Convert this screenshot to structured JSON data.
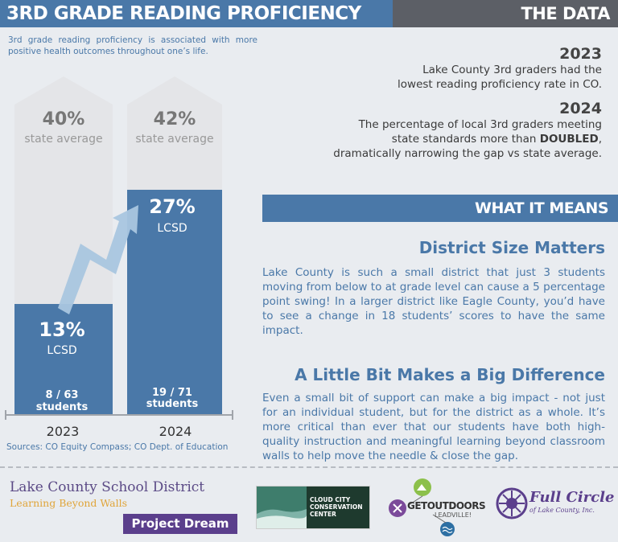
{
  "header": {
    "title": "3RD GRADE READING PROFICIENCY",
    "data_title": "THE DATA"
  },
  "intro": "3rd grade reading proficiency is associated with more positive health outcomes throughout one’s life.",
  "chart_data": {
    "type": "bar",
    "categories": [
      "2023",
      "2024"
    ],
    "series": [
      {
        "name": "LCSD",
        "values": [
          13,
          27
        ]
      },
      {
        "name": "state average",
        "values": [
          40,
          42
        ]
      }
    ],
    "ylim": [
      0,
      45
    ],
    "labels": {
      "state_avg_2023": "40%",
      "state_avg_2024": "42%",
      "state_avg_text": "state average",
      "lcsd_2023": "13%",
      "lcsd_2024": "27%",
      "lcsd_text": "LCSD",
      "count_2023": "8 / 63",
      "count_2024": "19 / 71",
      "students_text": "students"
    },
    "colors": {
      "lcsd": "#4a78a8",
      "state": "#e4e5e8",
      "arrow": "#a9c6df"
    }
  },
  "sources": "Sources: CO Equity Compass; CO Dept. of Education",
  "the_data": {
    "y2023": {
      "year": "2023",
      "line1": "Lake County 3rd graders had the",
      "line2": "lowest reading proficiency rate in CO."
    },
    "y2024": {
      "year": "2024",
      "line1": "The percentage of local 3rd graders meeting",
      "line2_a": "state standards more than ",
      "line2_b": "DOUBLED",
      "line2_c": ",",
      "line3": "dramatically narrowing the gap vs state average."
    }
  },
  "what_it_means": {
    "title": "WHAT IT MEANS",
    "s1_head": "District Size Matters",
    "s1_body": "Lake County is such a small district that just 3 students moving from below to at grade level can cause a 5 percentage point swing! In a larger district like Eagle County, you’d have to see a change in 18 students’ scores to have the same impact.",
    "s2_head": "A Little Bit Makes a Big Difference",
    "s2_body": "Even a small bit of support can make a big impact - not just for an individual student, but for the district as a whole. It’s more critical than ever that our students have both high-quality instruction and meaningful learning beyond classroom walls to help move the needle & close the gap."
  },
  "footer": {
    "lcsd_name": "Lake County School District",
    "lcsd_tag": "Learning Beyond Walls",
    "project_dream": "Project Dream",
    "cc_line1": "CLOUD CITY",
    "cc_line2": "CONSERVATION",
    "cc_line3": "CENTER",
    "go_text": "GETOUTDOORS",
    "go_sub": "LEADVILLE!",
    "fc_text": "Full Circle",
    "fc_sub": "of Lake County, Inc."
  }
}
